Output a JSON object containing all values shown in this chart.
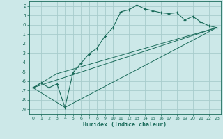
{
  "xlabel": "Humidex (Indice chaleur)",
  "xlim": [
    -0.5,
    23.5
  ],
  "ylim": [
    -9.5,
    2.5
  ],
  "yticks": [
    2,
    1,
    0,
    -1,
    -2,
    -3,
    -4,
    -5,
    -6,
    -7,
    -8,
    -9
  ],
  "xticks": [
    0,
    1,
    2,
    3,
    4,
    5,
    6,
    7,
    8,
    9,
    10,
    11,
    12,
    13,
    14,
    15,
    16,
    17,
    18,
    19,
    20,
    21,
    22,
    23
  ],
  "bg_color": "#cce8e8",
  "grid_color": "#a8cccc",
  "line_color": "#1a6b5a",
  "line1_x": [
    0,
    1,
    2,
    3,
    4,
    5,
    6,
    7,
    8,
    9,
    10,
    11,
    12,
    13,
    14,
    15,
    16,
    17,
    18,
    19,
    20,
    21,
    22,
    23
  ],
  "line1_y": [
    -6.7,
    -6.2,
    -6.7,
    -6.3,
    -8.8,
    -5.1,
    -4.1,
    -3.1,
    -2.5,
    -1.2,
    -0.3,
    1.4,
    1.6,
    2.1,
    1.7,
    1.5,
    1.3,
    1.2,
    1.3,
    0.5,
    0.9,
    0.3,
    -0.1,
    -0.3
  ],
  "line2_x": [
    0,
    23
  ],
  "line2_y": [
    -6.7,
    -0.3
  ],
  "line3_x": [
    0,
    3,
    23
  ],
  "line3_y": [
    -6.7,
    -5.2,
    -0.3
  ],
  "line4_x": [
    0,
    4,
    23
  ],
  "line4_y": [
    -6.7,
    -8.8,
    -0.3
  ]
}
